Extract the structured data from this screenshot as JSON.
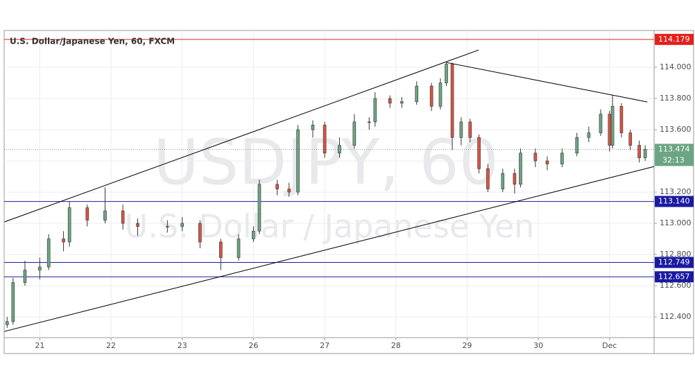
{
  "chart_data": {
    "type": "candlestick",
    "title": "U.S. Dollar/Japanese Yen, 60, FXCM",
    "watermark": "USDJPY, 60",
    "watermark_subtitle": "U.S. Dollar / Japanese Yen",
    "xlim": [
      -12,
      207
    ],
    "ylim": [
      112.267,
      114.236
    ],
    "xticks": [
      {
        "value": 0,
        "label": "21"
      },
      {
        "value": 24,
        "label": "22"
      },
      {
        "value": 48,
        "label": "23"
      },
      {
        "value": 72,
        "label": "26"
      },
      {
        "value": 96,
        "label": "27"
      },
      {
        "value": 120,
        "label": "28"
      },
      {
        "value": 144,
        "label": "29"
      },
      {
        "value": 168,
        "label": "30"
      },
      {
        "value": 192,
        "label": "Dec"
      }
    ],
    "yticks": [
      {
        "value": 112.4,
        "label": "112.400"
      },
      {
        "value": 112.6,
        "label": "112.600"
      },
      {
        "value": 112.8,
        "label": "112.800"
      },
      {
        "value": 113.0,
        "label": "113.000"
      },
      {
        "value": 113.2,
        "label": "113.200"
      },
      {
        "value": 113.4,
        "label": "113.400"
      },
      {
        "value": 113.6,
        "label": "113.600"
      },
      {
        "value": 113.8,
        "label": "113.800"
      },
      {
        "value": 114.0,
        "label": "114.000"
      }
    ],
    "grid": true,
    "up_color": "#6ba583",
    "down_color": "#d75442",
    "x": [
      -11,
      -9,
      -5,
      0,
      3,
      8,
      10,
      16,
      22,
      28,
      33,
      43,
      48,
      54,
      61,
      67,
      72,
      74,
      80,
      84,
      87,
      92,
      96,
      101,
      106,
      111,
      113,
      118,
      122,
      127,
      132,
      135,
      137,
      139,
      142,
      145,
      148,
      151,
      156,
      160,
      162,
      167,
      171,
      176,
      181,
      185,
      189,
      192,
      193,
      196,
      199,
      202,
      204
    ],
    "open": [
      112.35,
      112.37,
      112.62,
      112.7,
      112.72,
      112.9,
      112.88,
      113.1,
      113.02,
      113.08,
      113.0,
      112.98,
      112.98,
      113.0,
      112.88,
      112.78,
      112.9,
      112.95,
      113.25,
      113.22,
      113.2,
      113.6,
      113.63,
      113.45,
      113.5,
      113.65,
      113.65,
      113.8,
      113.77,
      113.78,
      113.88,
      113.75,
      113.9,
      114.02,
      113.55,
      113.65,
      113.55,
      113.35,
      113.22,
      113.32,
      113.25,
      113.45,
      113.4,
      113.38,
      113.45,
      113.55,
      113.58,
      113.7,
      113.5,
      113.75,
      113.58,
      113.5,
      113.42
    ],
    "high": [
      112.4,
      112.65,
      112.76,
      112.78,
      112.93,
      112.95,
      113.14,
      113.12,
      113.23,
      113.12,
      113.03,
      113.02,
      113.04,
      113.02,
      112.9,
      112.93,
      112.98,
      113.28,
      113.28,
      113.26,
      113.63,
      113.66,
      113.65,
      113.55,
      113.7,
      113.68,
      113.84,
      113.82,
      113.81,
      113.91,
      113.9,
      113.93,
      114.03,
      114.03,
      113.68,
      113.67,
      113.57,
      113.38,
      113.35,
      113.35,
      113.48,
      113.48,
      113.43,
      113.48,
      113.58,
      113.62,
      113.73,
      113.72,
      113.82,
      113.77,
      113.6,
      113.53,
      113.5
    ],
    "low": [
      112.33,
      112.35,
      112.6,
      112.64,
      112.7,
      112.82,
      112.85,
      112.98,
      113.0,
      112.96,
      112.92,
      112.94,
      112.95,
      112.84,
      112.7,
      112.76,
      112.88,
      112.93,
      113.18,
      113.17,
      113.18,
      113.55,
      113.42,
      113.42,
      113.48,
      113.6,
      113.62,
      113.74,
      113.74,
      113.76,
      113.72,
      113.73,
      113.88,
      113.47,
      113.5,
      113.52,
      113.32,
      113.2,
      113.2,
      113.19,
      113.23,
      113.36,
      113.34,
      113.36,
      113.43,
      113.52,
      113.56,
      113.46,
      113.48,
      113.55,
      113.47,
      113.39,
      113.4
    ],
    "close": [
      112.37,
      112.62,
      112.7,
      112.72,
      112.9,
      112.88,
      113.1,
      113.02,
      113.08,
      113.0,
      112.98,
      112.98,
      113.0,
      112.88,
      112.78,
      112.9,
      112.95,
      113.25,
      113.22,
      113.2,
      113.6,
      113.63,
      113.45,
      113.5,
      113.65,
      113.65,
      113.8,
      113.77,
      113.78,
      113.88,
      113.75,
      113.9,
      114.02,
      113.55,
      113.65,
      113.55,
      113.35,
      113.22,
      113.32,
      113.25,
      113.45,
      113.4,
      113.38,
      113.45,
      113.55,
      113.58,
      113.7,
      113.5,
      113.75,
      113.58,
      113.5,
      113.42,
      113.474
    ],
    "hlines": [
      {
        "value": 114.179,
        "color": "#e3201b"
      },
      {
        "value": 113.14,
        "label": "113.140",
        "color": "#1a1aa0"
      },
      {
        "value": 112.749,
        "color": "#1a1aa0"
      },
      {
        "value": 112.657,
        "color": "#1a1aa0"
      }
    ],
    "last_price": 113.474,
    "countdown": "32:13",
    "trendlines": [
      {
        "x": [
          -11.9,
          147.9
        ],
        "y": [
          113.009,
          114.111
        ]
      },
      {
        "x": [
          -11.9,
          207
        ],
        "y": [
          112.307,
          113.364
        ]
      },
      {
        "x": [
          137,
          204.7
        ],
        "y": [
          114.031,
          113.778
        ]
      }
    ]
  }
}
